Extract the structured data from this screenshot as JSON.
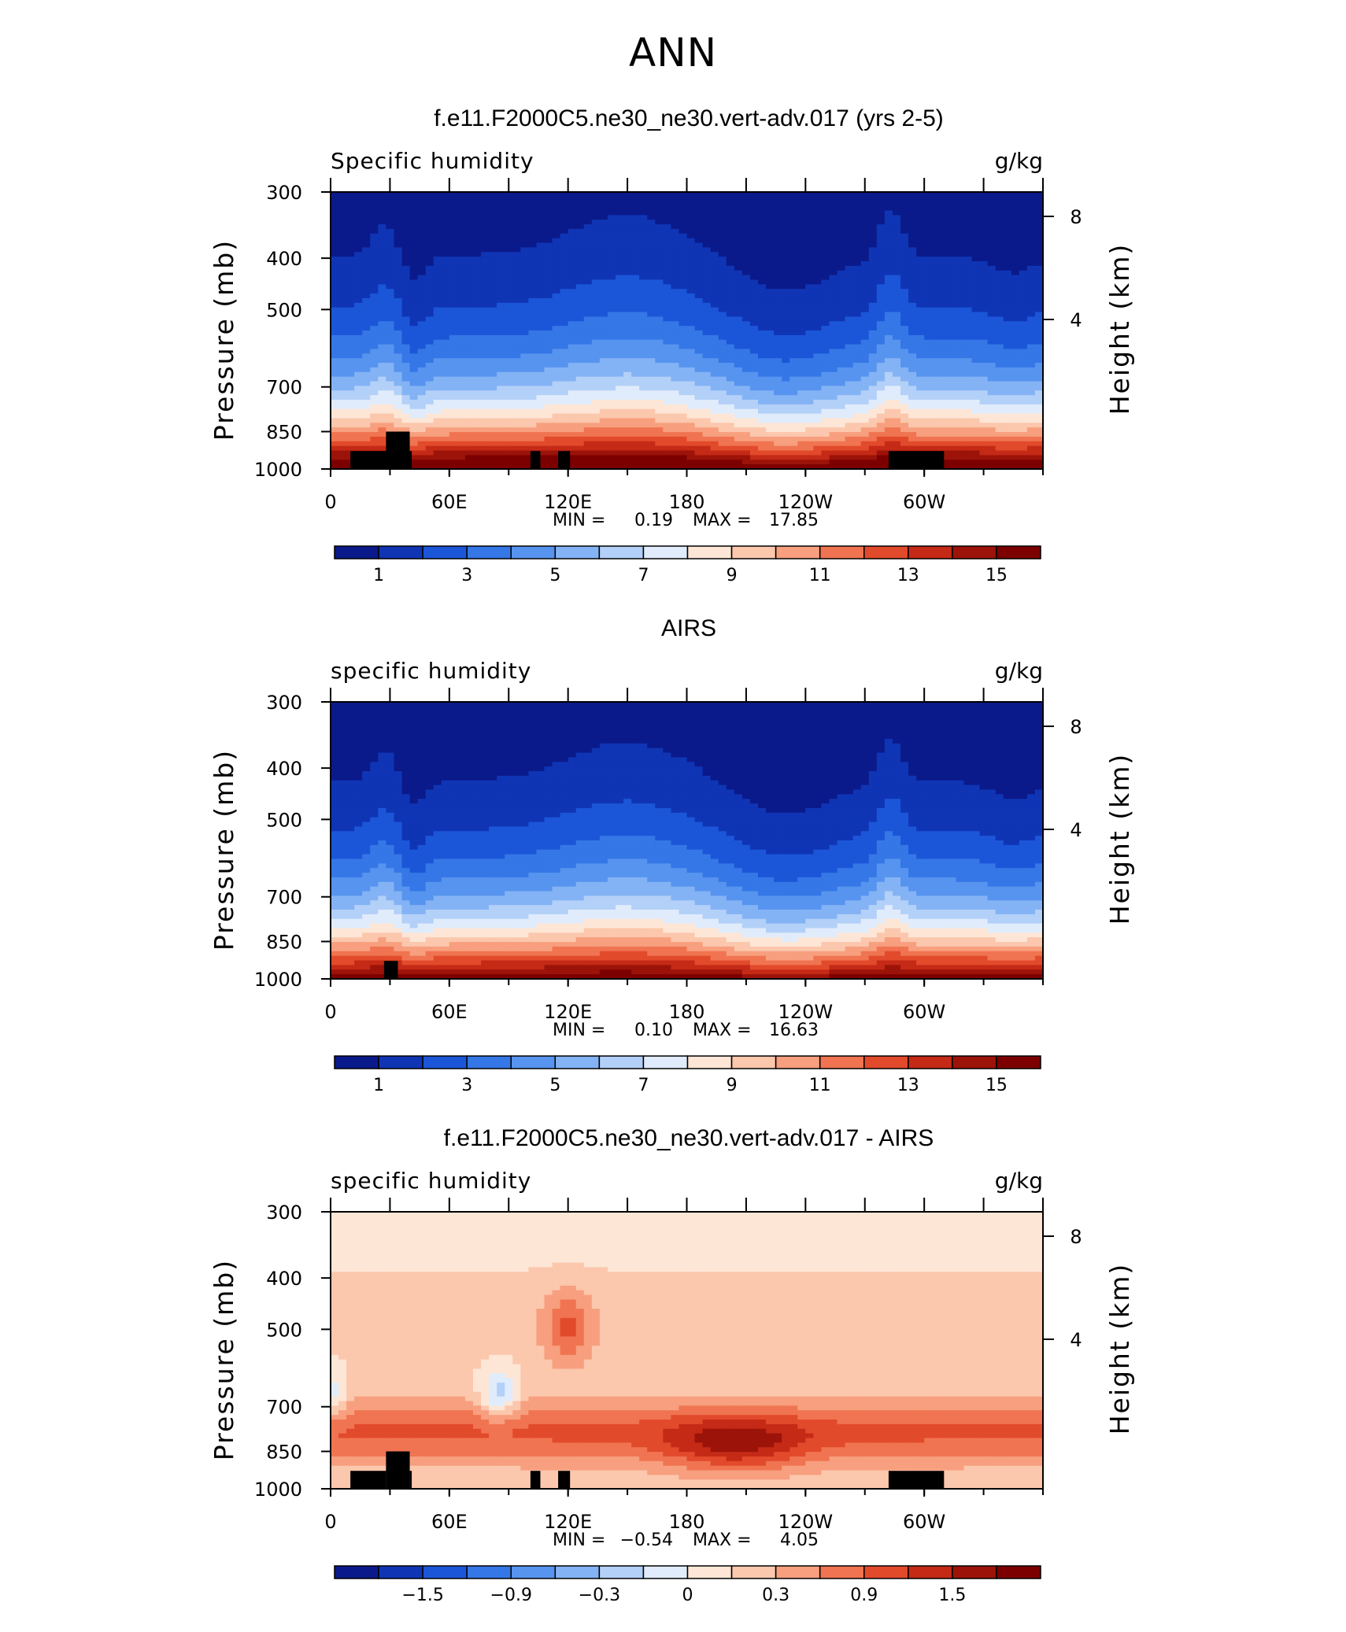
{
  "page": {
    "title": "ANN"
  },
  "colors": {
    "blue_red": [
      "#0b1a8a",
      "#0f35b5",
      "#1c56d8",
      "#3577e6",
      "#5794ef",
      "#84b3f5",
      "#b3d0f8",
      "#e0ecfb",
      "#fde6d6",
      "#fbc7ad",
      "#f79f7e",
      "#f07451",
      "#e24a2c",
      "#c42a16",
      "#9c1309",
      "#7d0000"
    ],
    "land_mask": "#000000"
  },
  "chart_data": [
    {
      "type": "heatmap",
      "title": "f.e11.F2000C5.ne30_ne30.vert-adv.017 (yrs 2-5)",
      "left_label": "Specific humidity",
      "right_label": "g/kg",
      "ylabel": "Pressure (mb)",
      "ylabel_right": "Height (km)",
      "x_ticks": [
        "0",
        "60E",
        "120E",
        "180",
        "120W",
        "60W"
      ],
      "y_ticks": [
        "300",
        "400",
        "500",
        "700",
        "850",
        "1000"
      ],
      "y_ticks_right": [
        "8",
        "4"
      ],
      "stats": {
        "min_label": "MIN =",
        "min": "0.19",
        "max_label": "MAX =",
        "max": "17.85"
      },
      "colorbar_labels": [
        "1",
        "3",
        "5",
        "7",
        "9",
        "11",
        "13",
        "15"
      ],
      "levels": [
        0,
        1,
        2,
        3,
        4,
        5,
        6,
        7,
        8,
        9,
        10,
        11,
        12,
        13,
        14,
        15,
        16
      ]
    },
    {
      "type": "heatmap",
      "title": "AIRS",
      "left_label": "specific humidity",
      "right_label": "g/kg",
      "ylabel": "Pressure (mb)",
      "ylabel_right": "Height (km)",
      "x_ticks": [
        "0",
        "60E",
        "120E",
        "180",
        "120W",
        "60W"
      ],
      "y_ticks": [
        "300",
        "400",
        "500",
        "700",
        "850",
        "1000"
      ],
      "y_ticks_right": [
        "8",
        "4"
      ],
      "stats": {
        "min_label": "MIN =",
        "min": "0.10",
        "max_label": "MAX =",
        "max": "16.63"
      },
      "colorbar_labels": [
        "1",
        "3",
        "5",
        "7",
        "9",
        "11",
        "13",
        "15"
      ],
      "levels": [
        0,
        1,
        2,
        3,
        4,
        5,
        6,
        7,
        8,
        9,
        10,
        11,
        12,
        13,
        14,
        15,
        16
      ]
    },
    {
      "type": "heatmap",
      "title": "f.e11.F2000C5.ne30_ne30.vert-adv.017 - AIRS",
      "left_label": "specific humidity",
      "right_label": "g/kg",
      "ylabel": "Pressure (mb)",
      "ylabel_right": "Height (km)",
      "x_ticks": [
        "0",
        "60E",
        "120E",
        "180",
        "120W",
        "60W"
      ],
      "y_ticks": [
        "300",
        "400",
        "500",
        "700",
        "850",
        "1000"
      ],
      "y_ticks_right": [
        "8",
        "4"
      ],
      "stats": {
        "min_label": "MIN =",
        "min": "−0.54",
        "max_label": "MAX =",
        "max": "4.05"
      },
      "colorbar_labels": [
        "−1.5",
        "−0.9",
        "−0.3",
        "0",
        "0.3",
        "0.9",
        "1.5"
      ],
      "levels": [
        -2.4,
        -2.1,
        -1.8,
        -1.5,
        -1.2,
        -0.9,
        -0.6,
        -0.3,
        0,
        0.3,
        0.6,
        0.9,
        1.2,
        1.5,
        1.8,
        2.1,
        2.4
      ]
    }
  ]
}
